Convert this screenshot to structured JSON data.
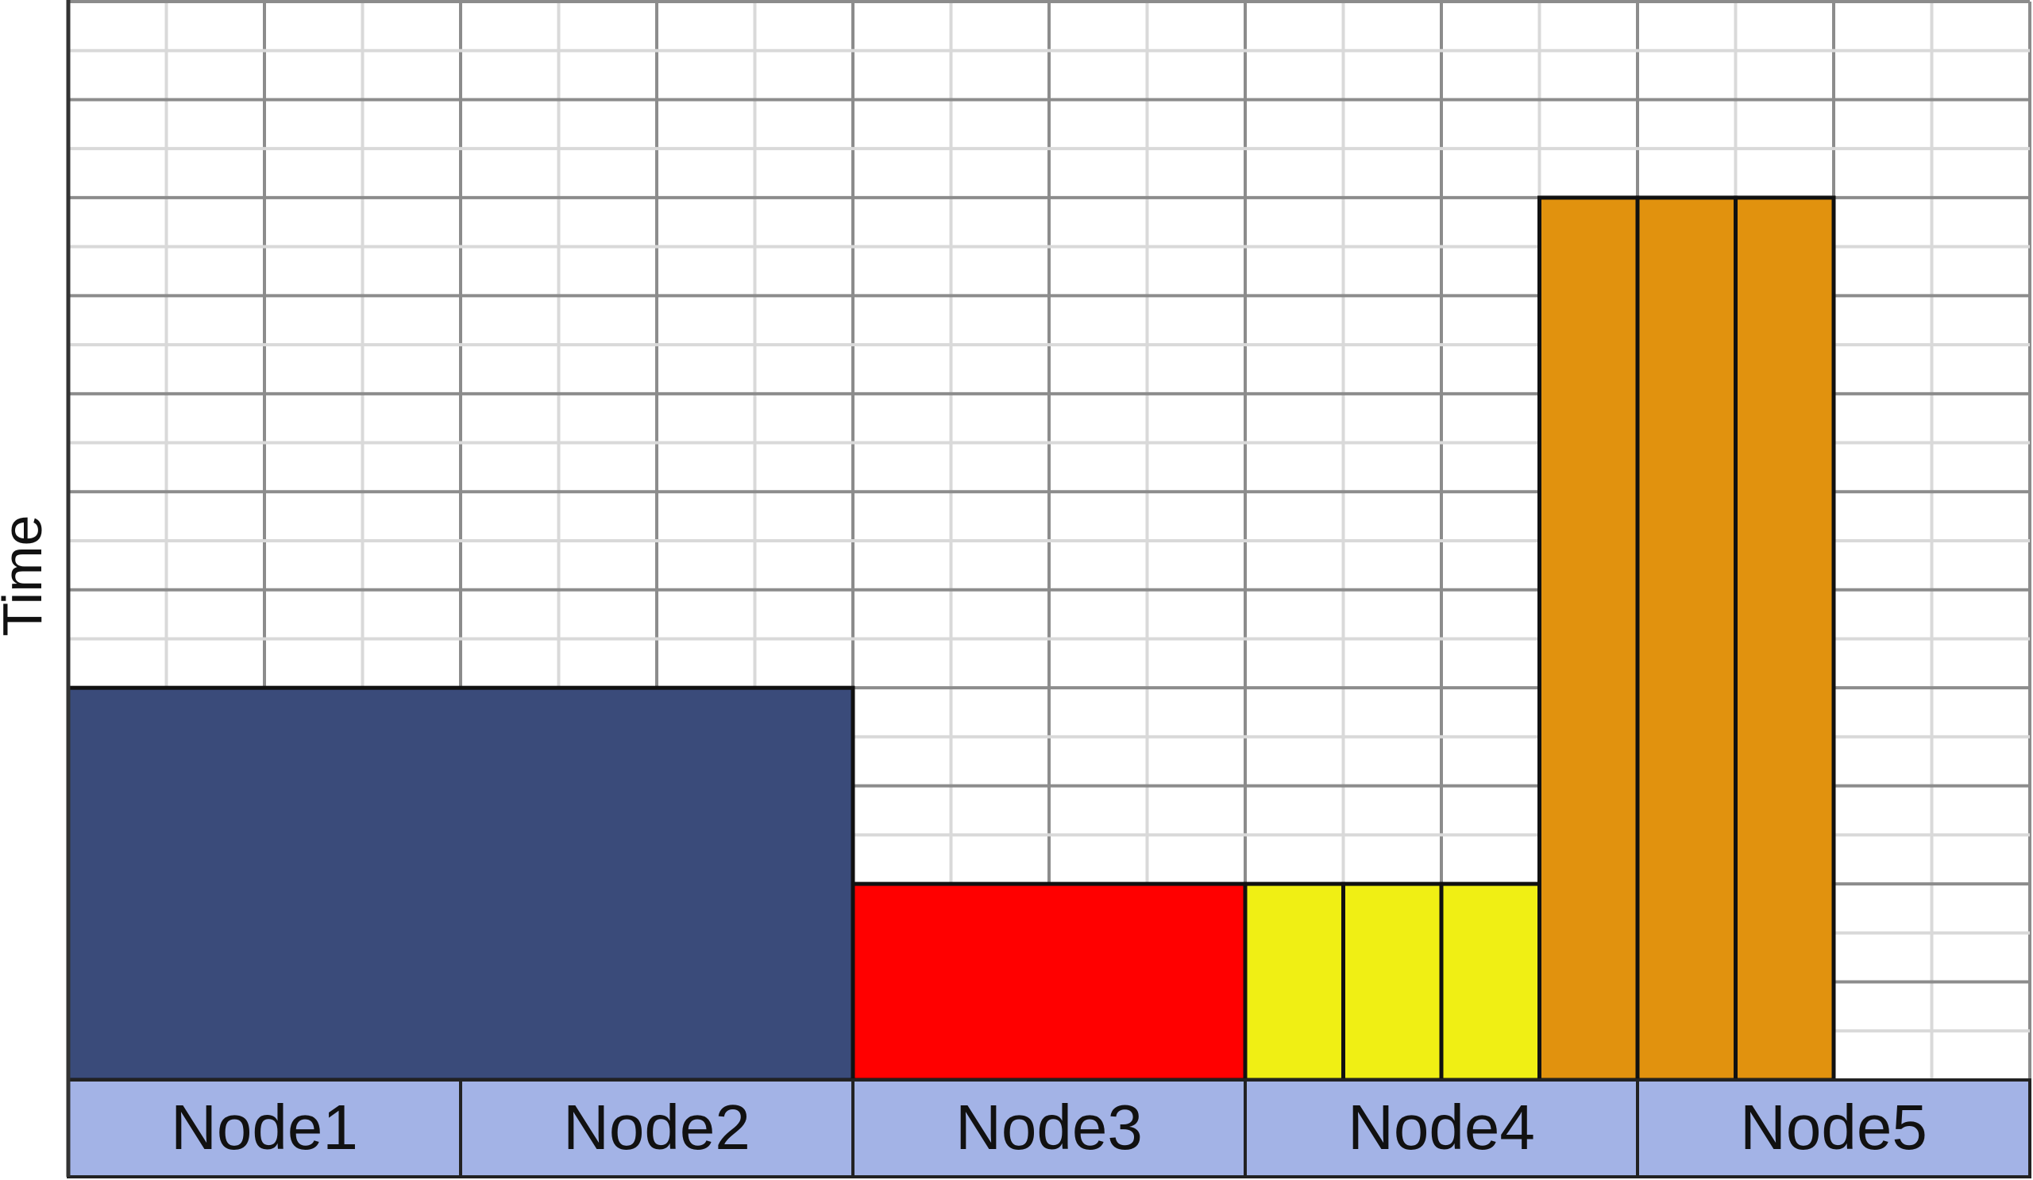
{
  "axis": {
    "y_label": "Time"
  },
  "nodes": [
    {
      "label": "Node1"
    },
    {
      "label": "Node2"
    },
    {
      "label": "Node3"
    },
    {
      "label": "Node4"
    },
    {
      "label": "Node5"
    }
  ],
  "slot_count": 20,
  "time_units": 11,
  "colors": {
    "node_band": "#a3b3e6",
    "block_navy": "#3a4b7a",
    "block_red": "#ff0000",
    "block_yellow": "#f0ef14",
    "block_orange": "#e1920e"
  },
  "blocks": [
    {
      "id": "navy",
      "slot_start": 0,
      "slot_span": 8,
      "height_units": 4,
      "color": "#3a4b7a"
    },
    {
      "id": "red",
      "slot_start": 8,
      "slot_span": 4,
      "height_units": 2,
      "color": "#ff0000"
    },
    {
      "id": "yellow-1",
      "slot_start": 12,
      "slot_span": 1,
      "height_units": 2,
      "color": "#f0ef14"
    },
    {
      "id": "yellow-2",
      "slot_start": 13,
      "slot_span": 1,
      "height_units": 2,
      "color": "#f0ef14"
    },
    {
      "id": "yellow-3",
      "slot_start": 14,
      "slot_span": 1,
      "height_units": 2,
      "color": "#f0ef14"
    },
    {
      "id": "orange-1",
      "slot_start": 15,
      "slot_span": 1,
      "height_units": 9,
      "color": "#e1920e"
    },
    {
      "id": "orange-2",
      "slot_start": 16,
      "slot_span": 1,
      "height_units": 9,
      "color": "#e1920e"
    },
    {
      "id": "orange-3",
      "slot_start": 17,
      "slot_span": 1,
      "height_units": 9,
      "color": "#e1920e"
    }
  ]
}
